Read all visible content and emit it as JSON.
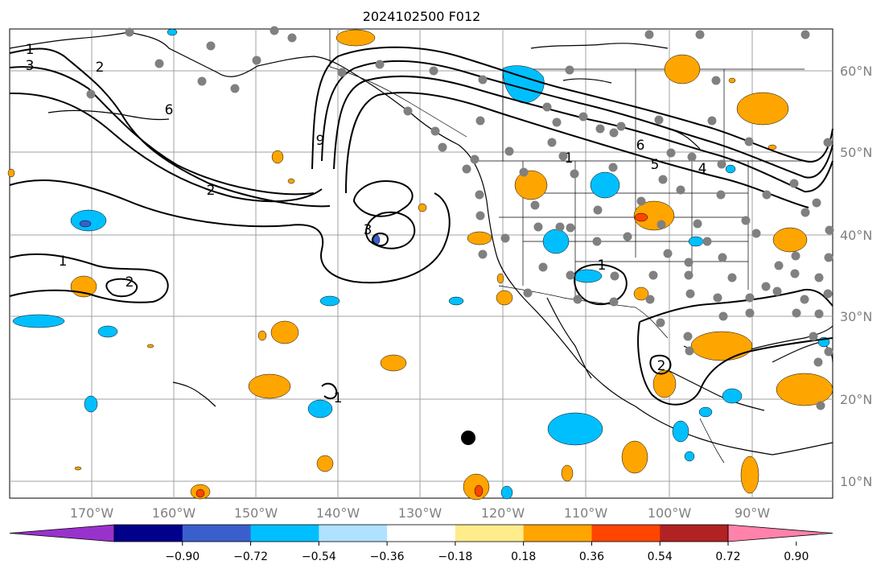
{
  "title": "2024102500 F012",
  "map": {
    "lat_ticks": [
      "60°N",
      "50°N",
      "40°N",
      "30°N",
      "20°N",
      "10°N"
    ],
    "lon_ticks": [
      "170°W",
      "160°W",
      "150°W",
      "140°W",
      "130°W",
      "120°W",
      "110°W",
      "100°W",
      "90°W"
    ],
    "contour_labels": [
      "1",
      "3",
      "2",
      "6",
      "9",
      "3",
      "2",
      "1",
      "6",
      "5",
      "4",
      "1",
      "2",
      "1",
      "2",
      "1"
    ],
    "colors": {
      "land_border": "#000000",
      "grid": "#a0a0a0",
      "station": "#808080",
      "contour": "#000000"
    }
  },
  "colorbar": {
    "labels": [
      "−0.90",
      "−0.72",
      "−0.54",
      "−0.36",
      "−0.18",
      "0.18",
      "0.36",
      "0.54",
      "0.72",
      "0.90"
    ],
    "colors": [
      "#9932cc",
      "#00008b",
      "#3a5fcd",
      "#00bfff",
      "#b0e2ff",
      "#ffffff",
      "#ffec8b",
      "#ffa500",
      "#ff4500",
      "#b22222",
      "#ff82ab"
    ]
  }
}
